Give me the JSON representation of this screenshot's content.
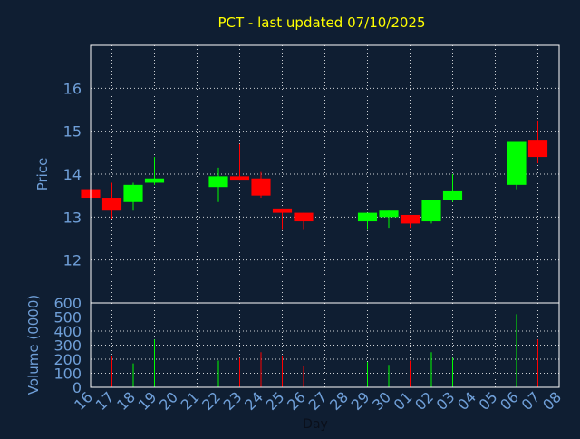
{
  "colors": {
    "background": "#0f1e32",
    "title": "#ffff00",
    "axis_text": "#6f9fd8",
    "axis_line": "#ffffff",
    "grid": "#ffffff",
    "up": "#00ff00",
    "down": "#ff0000"
  },
  "chart_data": [
    {
      "type": "candlestick",
      "title": "PCT - last updated 07/10/2025",
      "ylabel": "Price",
      "ylim": [
        11,
        17
      ],
      "yticks": [
        12,
        13,
        14,
        15,
        16
      ],
      "grid": true,
      "x": [
        "16",
        "17",
        "18",
        "19",
        "20",
        "21",
        "22",
        "23",
        "24",
        "25",
        "26",
        "27",
        "28",
        "29",
        "30",
        "01",
        "02",
        "03",
        "04",
        "05",
        "06",
        "07",
        "08"
      ],
      "candles": [
        {
          "x": "16",
          "open": 13.65,
          "high": 13.65,
          "low": 13.45,
          "close": 13.45
        },
        {
          "x": "17",
          "open": 13.45,
          "high": 13.8,
          "low": 12.95,
          "close": 13.15
        },
        {
          "x": "18",
          "open": 13.35,
          "high": 13.8,
          "low": 13.15,
          "close": 13.75
        },
        {
          "x": "19",
          "open": 13.8,
          "high": 14.4,
          "low": 13.75,
          "close": 13.9
        },
        {
          "x": "22",
          "open": 13.7,
          "high": 14.15,
          "low": 13.35,
          "close": 13.95
        },
        {
          "x": "23",
          "open": 13.95,
          "high": 14.7,
          "low": 13.85,
          "close": 13.85
        },
        {
          "x": "24",
          "open": 13.9,
          "high": 14.05,
          "low": 13.45,
          "close": 13.5
        },
        {
          "x": "25",
          "open": 13.2,
          "high": 13.2,
          "low": 12.7,
          "close": 13.1
        },
        {
          "x": "26",
          "open": 13.1,
          "high": 13.1,
          "low": 12.7,
          "close": 12.9
        },
        {
          "x": "29",
          "open": 12.9,
          "high": 13.1,
          "low": 12.7,
          "close": 13.1
        },
        {
          "x": "30",
          "open": 13.0,
          "high": 13.15,
          "low": 12.75,
          "close": 13.15
        },
        {
          "x": "01",
          "open": 13.05,
          "high": 13.05,
          "low": 12.75,
          "close": 12.85
        },
        {
          "x": "02",
          "open": 12.9,
          "high": 13.4,
          "low": 12.85,
          "close": 13.4
        },
        {
          "x": "03",
          "open": 13.4,
          "high": 14.0,
          "low": 13.35,
          "close": 13.6
        },
        {
          "x": "06",
          "open": 13.75,
          "high": 14.75,
          "low": 13.65,
          "close": 14.75
        },
        {
          "x": "07",
          "open": 14.8,
          "high": 15.25,
          "low": 14.25,
          "close": 14.4
        }
      ]
    },
    {
      "type": "bar",
      "ylabel": "Volume (0000)",
      "xlabel": "Day",
      "ylim": [
        0,
        600
      ],
      "yticks": [
        0,
        100,
        200,
        300,
        400,
        500,
        600
      ],
      "grid": true,
      "x": [
        "16",
        "17",
        "18",
        "19",
        "20",
        "21",
        "22",
        "23",
        "24",
        "25",
        "26",
        "27",
        "28",
        "29",
        "30",
        "01",
        "02",
        "03",
        "04",
        "05",
        "06",
        "07",
        "08"
      ],
      "bars": [
        {
          "x": "17",
          "value": 220,
          "direction": "down"
        },
        {
          "x": "18",
          "value": 170,
          "direction": "up"
        },
        {
          "x": "19",
          "value": 340,
          "direction": "up"
        },
        {
          "x": "22",
          "value": 190,
          "direction": "up"
        },
        {
          "x": "23",
          "value": 210,
          "direction": "down"
        },
        {
          "x": "24",
          "value": 250,
          "direction": "down"
        },
        {
          "x": "25",
          "value": 220,
          "direction": "down"
        },
        {
          "x": "26",
          "value": 150,
          "direction": "down"
        },
        {
          "x": "29",
          "value": 180,
          "direction": "up"
        },
        {
          "x": "30",
          "value": 160,
          "direction": "up"
        },
        {
          "x": "01",
          "value": 190,
          "direction": "down"
        },
        {
          "x": "02",
          "value": 250,
          "direction": "up"
        },
        {
          "x": "03",
          "value": 210,
          "direction": "up"
        },
        {
          "x": "06",
          "value": 520,
          "direction": "up"
        },
        {
          "x": "07",
          "value": 340,
          "direction": "down"
        }
      ]
    }
  ]
}
